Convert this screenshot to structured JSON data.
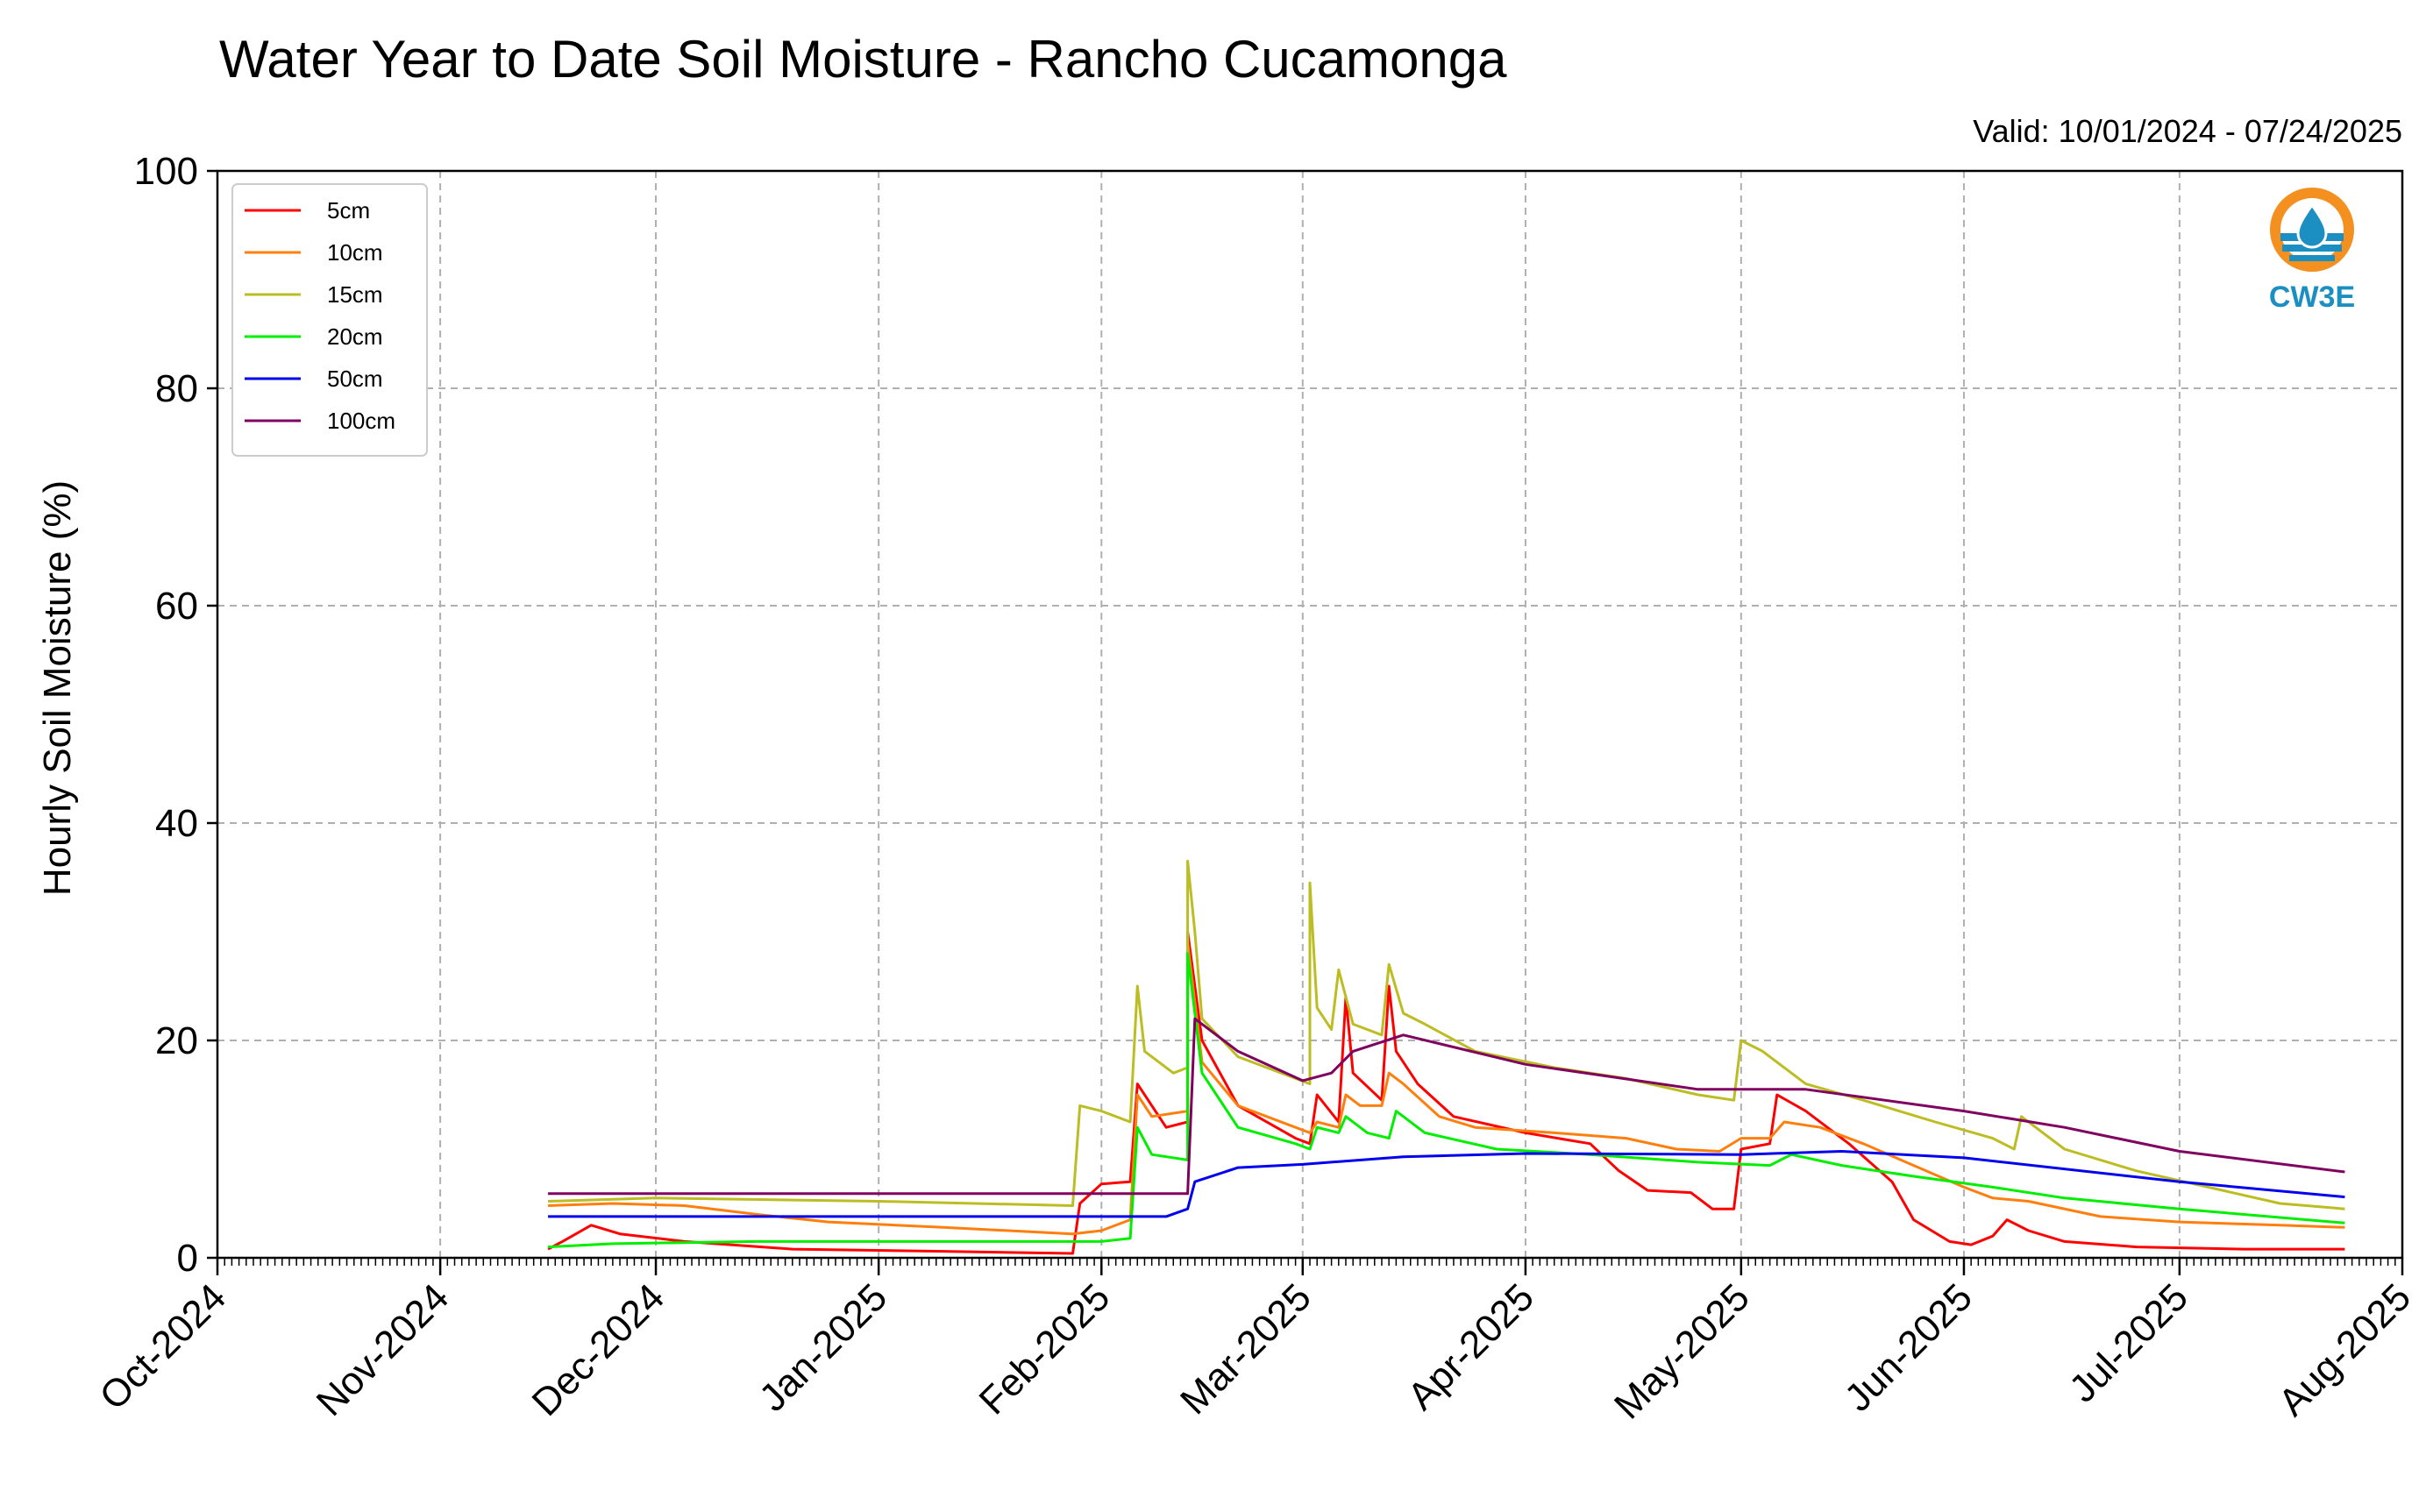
{
  "chart_data": {
    "type": "line",
    "title": "Water Year to Date Soil Moisture - Rancho Cucamonga",
    "subtitle": "Valid: 10/01/2024 - 07/24/2025",
    "xlabel": "",
    "ylabel": "Hourly Soil Moisture (%)",
    "xlim": [
      "2024-10-01",
      "2025-08-01"
    ],
    "ylim": [
      0,
      100
    ],
    "yticks": [
      0,
      20,
      40,
      60,
      80,
      100
    ],
    "xticks": [
      {
        "date": "2024-10-01",
        "label": "Oct-2024"
      },
      {
        "date": "2024-11-01",
        "label": "Nov-2024"
      },
      {
        "date": "2024-12-01",
        "label": "Dec-2024"
      },
      {
        "date": "2025-01-01",
        "label": "Jan-2025"
      },
      {
        "date": "2025-02-01",
        "label": "Feb-2025"
      },
      {
        "date": "2025-03-01",
        "label": "Mar-2025"
      },
      {
        "date": "2025-04-01",
        "label": "Apr-2025"
      },
      {
        "date": "2025-05-01",
        "label": "May-2025"
      },
      {
        "date": "2025-06-01",
        "label": "Jun-2025"
      },
      {
        "date": "2025-07-01",
        "label": "Jul-2025"
      },
      {
        "date": "2025-08-01",
        "label": "Aug-2025"
      }
    ],
    "grid": true,
    "legend_position": "top-left",
    "series": [
      {
        "name": "5cm",
        "color": "#ff0000",
        "points": [
          [
            "2024-11-16",
            0.8
          ],
          [
            "2024-11-18",
            1.5
          ],
          [
            "2024-11-22",
            3.0
          ],
          [
            "2024-11-26",
            2.2
          ],
          [
            "2024-12-05",
            1.5
          ],
          [
            "2024-12-20",
            0.8
          ],
          [
            "2025-01-10",
            0.6
          ],
          [
            "2025-01-28",
            0.4
          ],
          [
            "2025-01-29",
            5.0
          ],
          [
            "2025-02-01",
            6.8
          ],
          [
            "2025-02-05",
            7.0
          ],
          [
            "2025-02-06",
            16.0
          ],
          [
            "2025-02-10",
            12.0
          ],
          [
            "2025-02-13",
            12.5
          ],
          [
            "2025-02-13",
            30.0
          ],
          [
            "2025-02-15",
            20.0
          ],
          [
            "2025-02-20",
            14.0
          ],
          [
            "2025-02-28",
            11.0
          ],
          [
            "2025-03-02",
            10.5
          ],
          [
            "2025-03-03",
            15.0
          ],
          [
            "2025-03-06",
            12.5
          ],
          [
            "2025-03-07",
            24.0
          ],
          [
            "2025-03-08",
            17.0
          ],
          [
            "2025-03-12",
            14.5
          ],
          [
            "2025-03-13",
            25.0
          ],
          [
            "2025-03-14",
            19.0
          ],
          [
            "2025-03-17",
            16.0
          ],
          [
            "2025-03-22",
            13.0
          ],
          [
            "2025-04-01",
            11.5
          ],
          [
            "2025-04-10",
            10.5
          ],
          [
            "2025-04-14",
            8.0
          ],
          [
            "2025-04-18",
            6.2
          ],
          [
            "2025-04-24",
            6.0
          ],
          [
            "2025-04-27",
            4.5
          ],
          [
            "2025-04-30",
            4.5
          ],
          [
            "2025-05-01",
            10.0
          ],
          [
            "2025-05-05",
            10.5
          ],
          [
            "2025-05-06",
            15.0
          ],
          [
            "2025-05-10",
            13.5
          ],
          [
            "2025-05-16",
            10.5
          ],
          [
            "2025-05-22",
            7.0
          ],
          [
            "2025-05-25",
            3.5
          ],
          [
            "2025-05-30",
            1.5
          ],
          [
            "2025-06-02",
            1.2
          ],
          [
            "2025-06-05",
            2.0
          ],
          [
            "2025-06-07",
            3.5
          ],
          [
            "2025-06-10",
            2.5
          ],
          [
            "2025-06-15",
            1.5
          ],
          [
            "2025-06-25",
            1.0
          ],
          [
            "2025-07-10",
            0.8
          ],
          [
            "2025-07-24",
            0.8
          ]
        ]
      },
      {
        "name": "10cm",
        "color": "#ff7f0e",
        "points": [
          [
            "2024-11-16",
            4.8
          ],
          [
            "2024-11-25",
            5.0
          ],
          [
            "2024-12-05",
            4.8
          ],
          [
            "2024-12-15",
            4.0
          ],
          [
            "2024-12-25",
            3.3
          ],
          [
            "2025-01-10",
            2.8
          ],
          [
            "2025-01-28",
            2.2
          ],
          [
            "2025-02-01",
            2.5
          ],
          [
            "2025-02-05",
            3.5
          ],
          [
            "2025-02-06",
            15.0
          ],
          [
            "2025-02-08",
            13.0
          ],
          [
            "2025-02-13",
            13.5
          ],
          [
            "2025-02-13",
            29.0
          ],
          [
            "2025-02-15",
            18.0
          ],
          [
            "2025-02-20",
            14.0
          ],
          [
            "2025-02-28",
            12.0
          ],
          [
            "2025-03-02",
            11.5
          ],
          [
            "2025-03-03",
            12.5
          ],
          [
            "2025-03-06",
            12.0
          ],
          [
            "2025-03-07",
            15.0
          ],
          [
            "2025-03-09",
            14.0
          ],
          [
            "2025-03-12",
            14.0
          ],
          [
            "2025-03-13",
            17.0
          ],
          [
            "2025-03-15",
            16.0
          ],
          [
            "2025-03-20",
            13.0
          ],
          [
            "2025-03-25",
            12.0
          ],
          [
            "2025-04-05",
            11.5
          ],
          [
            "2025-04-15",
            11.0
          ],
          [
            "2025-04-22",
            10.0
          ],
          [
            "2025-04-28",
            9.8
          ],
          [
            "2025-05-01",
            11.0
          ],
          [
            "2025-05-05",
            11.0
          ],
          [
            "2025-05-07",
            12.5
          ],
          [
            "2025-05-12",
            12.0
          ],
          [
            "2025-05-18",
            10.5
          ],
          [
            "2025-05-25",
            8.5
          ],
          [
            "2025-06-01",
            6.5
          ],
          [
            "2025-06-05",
            5.5
          ],
          [
            "2025-06-10",
            5.2
          ],
          [
            "2025-06-20",
            3.8
          ],
          [
            "2025-07-01",
            3.3
          ],
          [
            "2025-07-15",
            3.0
          ],
          [
            "2025-07-24",
            2.8
          ]
        ]
      },
      {
        "name": "15cm",
        "color": "#bcbd22",
        "points": [
          [
            "2024-11-16",
            5.2
          ],
          [
            "2024-12-01",
            5.5
          ],
          [
            "2025-01-01",
            5.2
          ],
          [
            "2025-01-28",
            4.8
          ],
          [
            "2025-01-29",
            14.0
          ],
          [
            "2025-02-01",
            13.5
          ],
          [
            "2025-02-05",
            12.5
          ],
          [
            "2025-02-06",
            25.0
          ],
          [
            "2025-02-07",
            19.0
          ],
          [
            "2025-02-11",
            17.0
          ],
          [
            "2025-02-13",
            17.5
          ],
          [
            "2025-02-13",
            36.5
          ],
          [
            "2025-02-14",
            30.0
          ],
          [
            "2025-02-15",
            22.0
          ],
          [
            "2025-02-20",
            18.5
          ],
          [
            "2025-02-28",
            16.5
          ],
          [
            "2025-03-02",
            16.0
          ],
          [
            "2025-03-02",
            34.5
          ],
          [
            "2025-03-03",
            23.0
          ],
          [
            "2025-03-05",
            21.0
          ],
          [
            "2025-03-06",
            26.5
          ],
          [
            "2025-03-08",
            21.5
          ],
          [
            "2025-03-12",
            20.5
          ],
          [
            "2025-03-13",
            27.0
          ],
          [
            "2025-03-15",
            22.5
          ],
          [
            "2025-03-18",
            21.5
          ],
          [
            "2025-03-25",
            19.0
          ],
          [
            "2025-04-05",
            17.5
          ],
          [
            "2025-04-15",
            16.5
          ],
          [
            "2025-04-25",
            15.0
          ],
          [
            "2025-04-30",
            14.5
          ],
          [
            "2025-05-01",
            20.0
          ],
          [
            "2025-05-04",
            19.0
          ],
          [
            "2025-05-10",
            16.0
          ],
          [
            "2025-05-18",
            14.5
          ],
          [
            "2025-05-28",
            12.5
          ],
          [
            "2025-06-05",
            11.0
          ],
          [
            "2025-06-08",
            10.0
          ],
          [
            "2025-06-09",
            13.0
          ],
          [
            "2025-06-15",
            10.0
          ],
          [
            "2025-06-25",
            8.0
          ],
          [
            "2025-07-05",
            6.5
          ],
          [
            "2025-07-15",
            5.0
          ],
          [
            "2025-07-24",
            4.5
          ]
        ]
      },
      {
        "name": "20cm",
        "color": "#00ee00",
        "points": [
          [
            "2024-11-16",
            1.0
          ],
          [
            "2024-11-25",
            1.3
          ],
          [
            "2024-12-15",
            1.5
          ],
          [
            "2025-01-15",
            1.5
          ],
          [
            "2025-02-01",
            1.5
          ],
          [
            "2025-02-05",
            1.8
          ],
          [
            "2025-02-06",
            12.0
          ],
          [
            "2025-02-08",
            9.5
          ],
          [
            "2025-02-13",
            9.0
          ],
          [
            "2025-02-13",
            28.0
          ],
          [
            "2025-02-15",
            17.0
          ],
          [
            "2025-02-20",
            12.0
          ],
          [
            "2025-02-28",
            10.5
          ],
          [
            "2025-03-02",
            10.0
          ],
          [
            "2025-03-03",
            12.0
          ],
          [
            "2025-03-06",
            11.5
          ],
          [
            "2025-03-07",
            13.0
          ],
          [
            "2025-03-10",
            11.5
          ],
          [
            "2025-03-13",
            11.0
          ],
          [
            "2025-03-14",
            13.5
          ],
          [
            "2025-03-18",
            11.5
          ],
          [
            "2025-03-28",
            10.0
          ],
          [
            "2025-04-10",
            9.5
          ],
          [
            "2025-04-25",
            8.8
          ],
          [
            "2025-05-05",
            8.5
          ],
          [
            "2025-05-08",
            9.5
          ],
          [
            "2025-05-15",
            8.5
          ],
          [
            "2025-05-25",
            7.5
          ],
          [
            "2025-06-05",
            6.5
          ],
          [
            "2025-06-15",
            5.5
          ],
          [
            "2025-07-01",
            4.5
          ],
          [
            "2025-07-24",
            3.2
          ]
        ]
      },
      {
        "name": "50cm",
        "color": "#0000ee",
        "points": [
          [
            "2024-11-16",
            3.8
          ],
          [
            "2025-01-01",
            3.8
          ],
          [
            "2025-02-10",
            3.8
          ],
          [
            "2025-02-13",
            4.5
          ],
          [
            "2025-02-14",
            7.0
          ],
          [
            "2025-02-20",
            8.3
          ],
          [
            "2025-03-01",
            8.6
          ],
          [
            "2025-03-15",
            9.3
          ],
          [
            "2025-04-01",
            9.6
          ],
          [
            "2025-05-01",
            9.5
          ],
          [
            "2025-05-15",
            9.8
          ],
          [
            "2025-06-01",
            9.2
          ],
          [
            "2025-07-01",
            7.0
          ],
          [
            "2025-07-24",
            5.6
          ]
        ]
      },
      {
        "name": "100cm",
        "color": "#800060",
        "points": [
          [
            "2024-11-16",
            5.9
          ],
          [
            "2025-02-13",
            5.9
          ],
          [
            "2025-02-14",
            22.0
          ],
          [
            "2025-02-20",
            19.0
          ],
          [
            "2025-03-01",
            16.3
          ],
          [
            "2025-03-05",
            17.0
          ],
          [
            "2025-03-08",
            19.0
          ],
          [
            "2025-03-15",
            20.5
          ],
          [
            "2025-04-01",
            17.8
          ],
          [
            "2025-04-25",
            15.5
          ],
          [
            "2025-05-10",
            15.5
          ],
          [
            "2025-06-01",
            13.5
          ],
          [
            "2025-06-15",
            12.0
          ],
          [
            "2025-07-01",
            9.8
          ],
          [
            "2025-07-24",
            7.9
          ]
        ]
      }
    ]
  },
  "logo": {
    "text": "CW3E",
    "icon": "water-drop-icon"
  }
}
